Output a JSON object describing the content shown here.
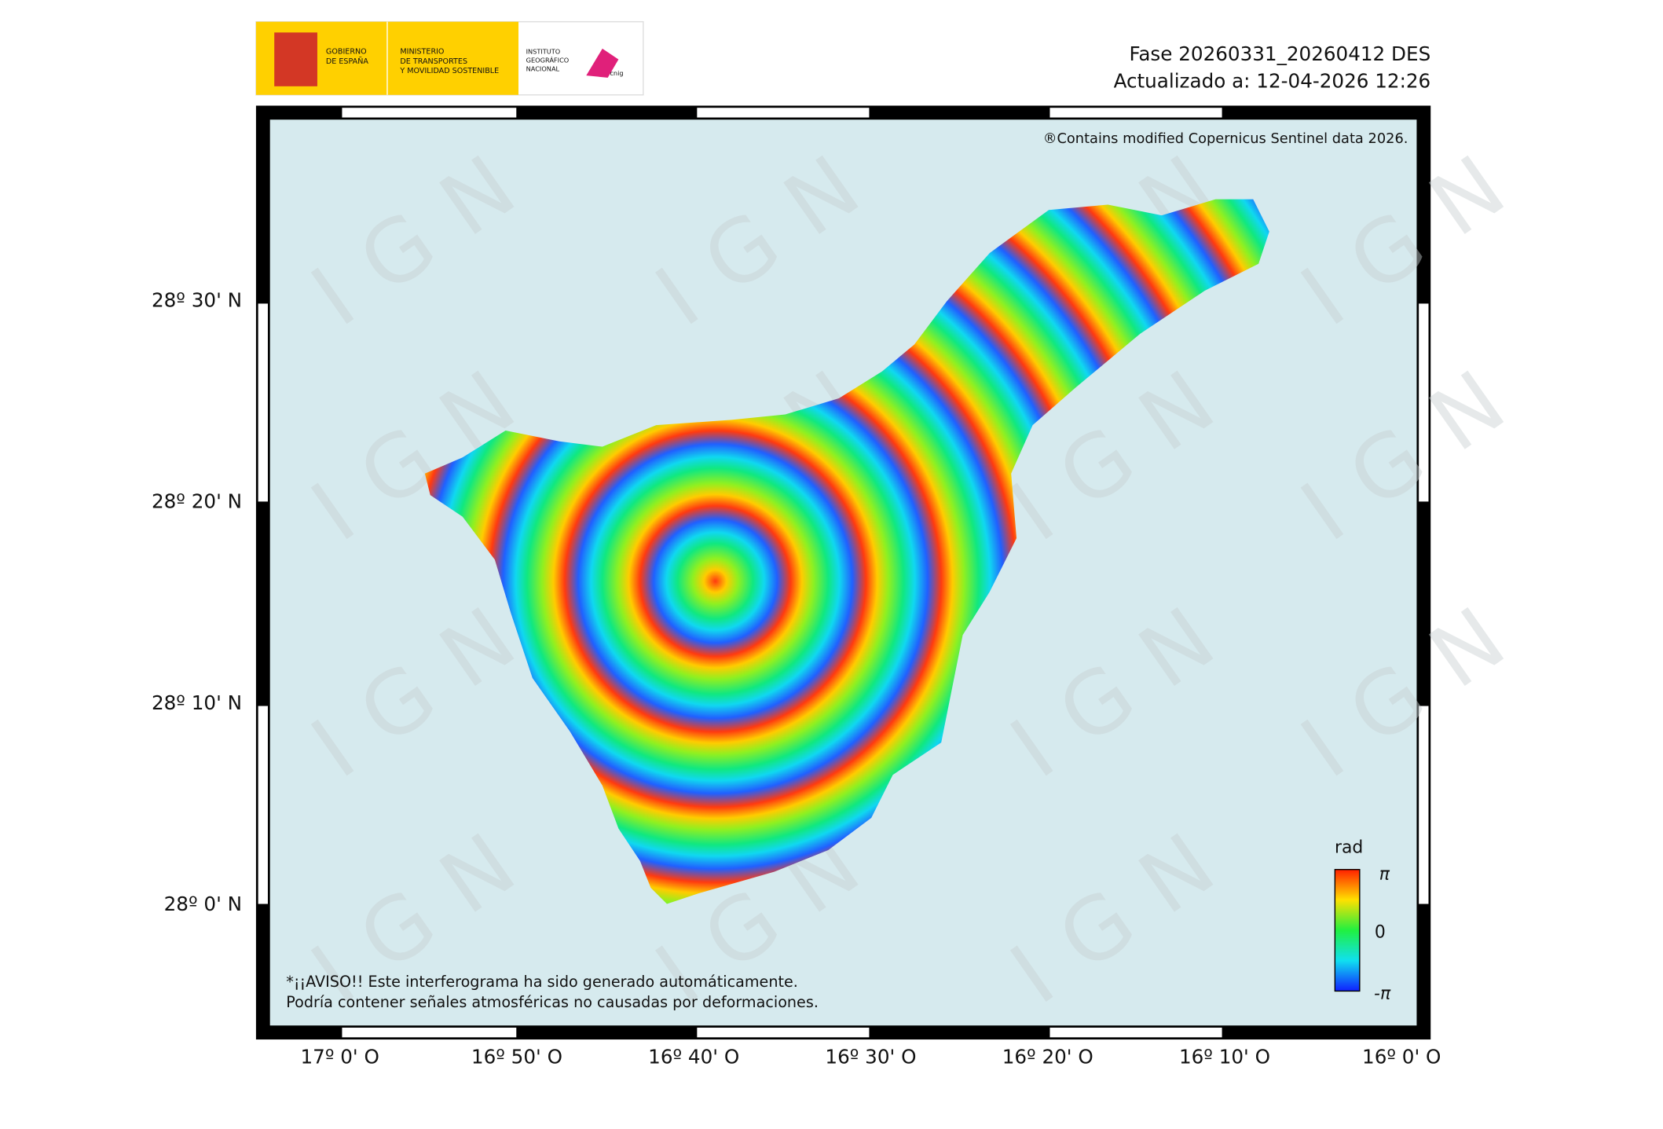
{
  "header": {
    "logo": {
      "government": [
        "GOBIERNO",
        "DE ESPAÑA"
      ],
      "ministry": [
        "MINISTERIO",
        "DE TRANSPORTES",
        "Y MOVILIDAD SOSTENIBLE"
      ],
      "institute": [
        "INSTITUTO",
        "GEOGRÁFICO",
        "NACIONAL"
      ],
      "brand": "cnig"
    },
    "phase": "Fase 20260331_20260412 DES",
    "updated": "Actualizado a: 12-04-2026 12:26"
  },
  "map": {
    "copyright": "®Contains modified Copernicus Sentinel data 2026.",
    "watermark": "IGN",
    "lat_labels": [
      "28º 30' N",
      "28º 20' N",
      "28º 10' N",
      "28º 0' N"
    ],
    "lon_labels": [
      "17º 0' O",
      "16º 50' O",
      "16º 40' O",
      "16º 30' O",
      "16º 20' O",
      "16º 10' O",
      "16º 0' O"
    ],
    "warning": [
      "*¡¡AVISO!! Este interferograma ha sido generado automáticamente.",
      "Podría contener señales atmosféricas no causadas por deformaciones."
    ],
    "colorbar": {
      "title": "rad",
      "labels": [
        "π",
        "0",
        "-π"
      ]
    }
  }
}
